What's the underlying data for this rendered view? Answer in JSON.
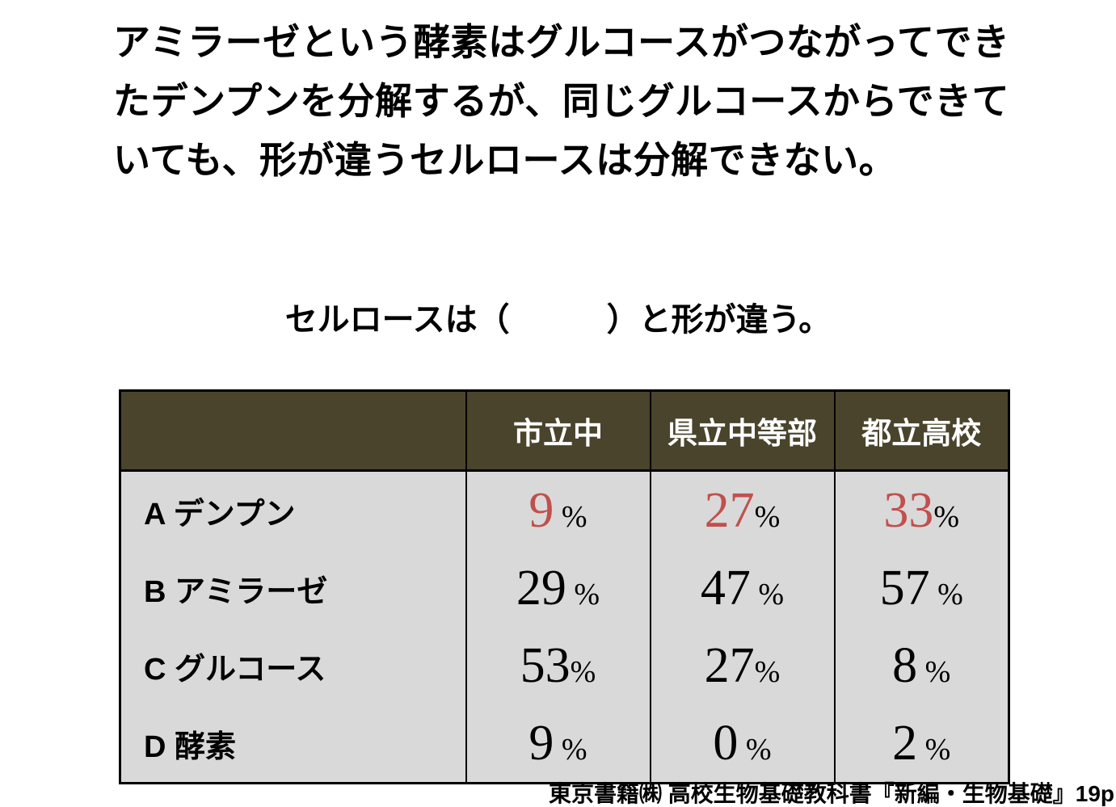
{
  "colors": {
    "header-bg": "#4a442c",
    "header-text": "#ffffff",
    "body-bg": "#d9d9d9",
    "accent-red": "#c0504d",
    "text": "#000000"
  },
  "intro": {
    "lines": [
      "アミラーゼという酵素はグルコースがつながってでき",
      "たデンプンを分解するが、同じグルコースからできて",
      "いても、形が違うセルロースは分解できない。"
    ]
  },
  "question": {
    "text": "セルロースは（　　　）と形が違う。"
  },
  "table": {
    "header": [
      "",
      "市立中",
      "県立中等部",
      "都立高校"
    ],
    "rows": [
      {
        "label": "A デンプン",
        "cells": [
          {
            "num": "9",
            "unit": " %"
          },
          {
            "num": "27",
            "unit": "%"
          },
          {
            "num": "33",
            "unit": "%"
          }
        ]
      },
      {
        "label": "B アミラーゼ",
        "cells": [
          {
            "num": "29",
            "unit": " %"
          },
          {
            "num": "47",
            "unit": " %"
          },
          {
            "num": "57",
            "unit": " %"
          }
        ]
      },
      {
        "label": "C グルコース",
        "cells": [
          {
            "num": "53",
            "unit": "%"
          },
          {
            "num": "27",
            "unit": "%"
          },
          {
            "num": "8",
            "unit": " %"
          }
        ]
      },
      {
        "label": "D 酵素",
        "cells": [
          {
            "num": "9",
            "unit": " %"
          },
          {
            "num": "0",
            "unit": " %"
          },
          {
            "num": "2",
            "unit": " %"
          }
        ]
      }
    ]
  },
  "citation": {
    "text": "東京書籍㈱ 高校生物基礎教科書『新編・生物基礎』19p"
  }
}
